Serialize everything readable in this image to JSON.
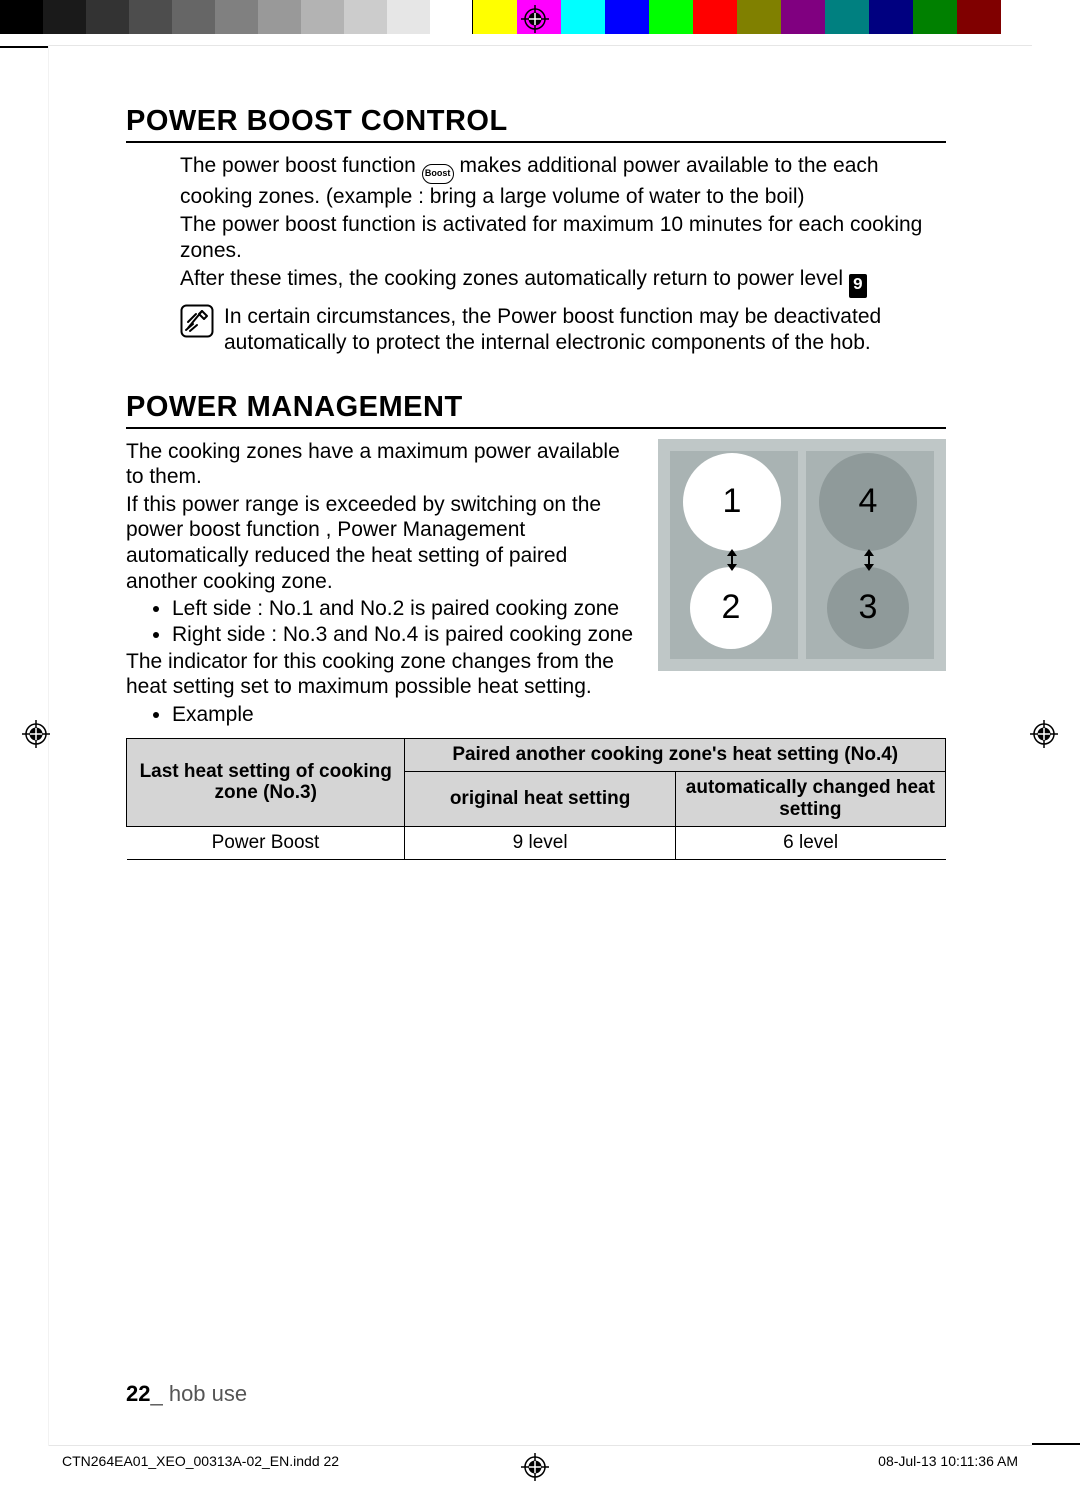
{
  "calibration": {
    "gray_steps": [
      "#000000",
      "#1a1a1a",
      "#333333",
      "#4d4d4d",
      "#666666",
      "#808080",
      "#999999",
      "#b3b3b3",
      "#cccccc",
      "#e6e6e6",
      "#ffffff"
    ],
    "color_steps": [
      "#ffff00",
      "#ff00ff",
      "#00ffff",
      "#0000ff",
      "#00ff00",
      "#ff0000",
      "#808000",
      "#800080",
      "#008080",
      "#000080",
      "#008000",
      "#800000"
    ]
  },
  "section1": {
    "title": "POWER BOOST CONTROL",
    "p1a": "The power boost function ",
    "p1b": " makes additional power available to the each cooking zones. (example : bring a large volume of water to the boil)",
    "p2": "The power boost function is activated for maximum 10 minutes for each cooking zones.",
    "p3": "After these times, the cooking zones automatically return to power level ",
    "boost_label": "Boost",
    "level_glyph": "9",
    "note": "In certain circumstances, the Power boost function may be deactivated automatically to protect the internal electronic components of the hob."
  },
  "section2": {
    "title": "POWER MANAGEMENT",
    "p1": "The cooking zones have a maximum power available to them.",
    "p2": "If this power range is exceeded by switching on the power boost function , Power Management automatically reduced the heat setting of paired another cooking zone.",
    "b1": "Left side : No.1 and No.2 is paired cooking zone",
    "b2": "Right side : No.3 and No.4 is paired cooking zone",
    "p3": "The indicator for this cooking zone changes from the heat setting set to maximum possible heat setting.",
    "b3": "Example",
    "hob": {
      "bg": "#bfc7c7",
      "panel": "#a9b3b3",
      "gray_zone": "#8f9a9a",
      "zones": {
        "z1": "1",
        "z2": "2",
        "z3": "3",
        "z4": "4"
      }
    },
    "table": {
      "h_left": "Last heat setting of cooking zone (No.3)",
      "h_top": "Paired another cooking zone's heat setting (No.4)",
      "h_sub1": "original heat setting",
      "h_sub2": "automatically changed heat setting",
      "r1c1": "Power Boost",
      "r1c2": "9 level",
      "r1c3": "6 level"
    }
  },
  "footer": {
    "page_no": "22",
    "section": "_ hob use",
    "imprint_file": "CTN264EA01_XEO_00313A-02_EN.indd   22",
    "imprint_time": "08-Jul-13   10:11:36 AM"
  }
}
